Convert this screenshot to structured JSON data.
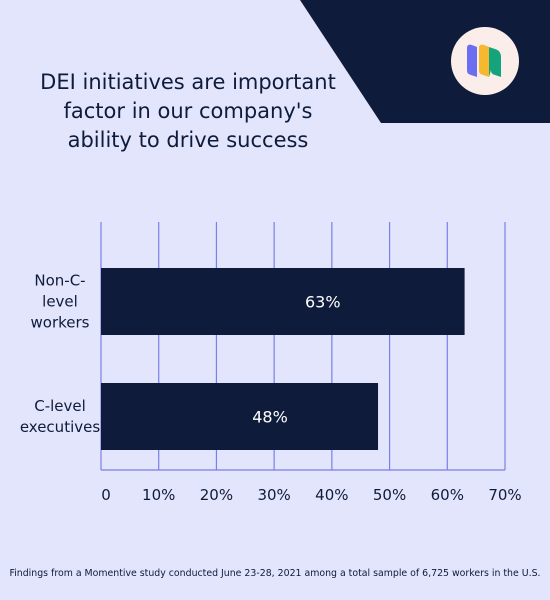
{
  "title": "DEI initiatives are important factor in our company's ability to drive success",
  "footnote": "Findings from a Momentive study conducted June 23-28, 2021 among a total sample of 6,725 workers in the U.S.",
  "logo": {
    "icon": "momentive-logo-icon",
    "colors": [
      "#6b6ef0",
      "#f5b82e",
      "#14a37a"
    ]
  },
  "colors": {
    "background": "#e3e5fd",
    "navy": "#0e1b3a",
    "grid": "#7b7fe6"
  },
  "chart_data": {
    "type": "bar",
    "orientation": "horizontal",
    "categories": [
      [
        "Non-C-",
        "level",
        "workers"
      ],
      [
        "C-level",
        "executives"
      ]
    ],
    "values": [
      63,
      48
    ],
    "value_labels": [
      "63%",
      "48%"
    ],
    "xlim": [
      0,
      70
    ],
    "xticks": [
      0,
      10,
      20,
      30,
      40,
      50,
      60,
      70
    ],
    "xtick_labels": [
      "0",
      "10%",
      "20%",
      "30%",
      "40%",
      "50%",
      "60%",
      "70%"
    ],
    "grid": true,
    "bar_color": "#0e1b3a"
  }
}
